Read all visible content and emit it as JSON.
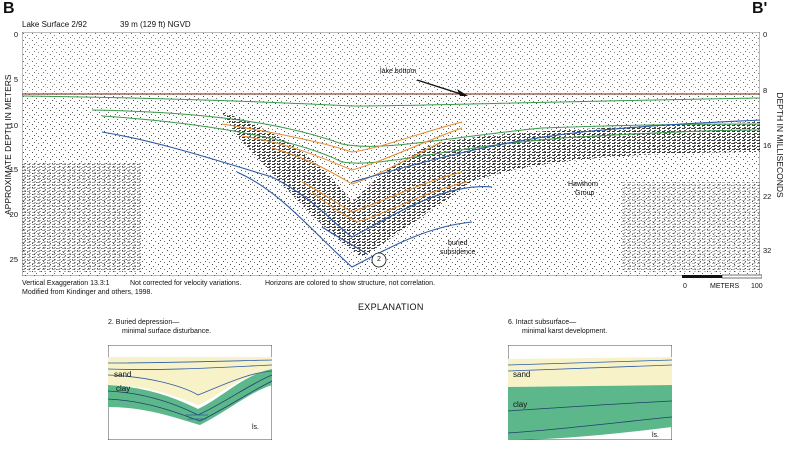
{
  "panel": {
    "left_letter": "B",
    "right_letter": "B'",
    "lake_surface": "Lake Surface 2/92",
    "ngvd": "39 m (129 ft) NGVD"
  },
  "axes": {
    "left_title": "APPROXIMATE DEPTH IN METERS",
    "right_title": "DEPTH IN MILLISECONDS",
    "left_ticks": [
      "0",
      "5",
      "10",
      "15",
      "20",
      "25"
    ],
    "right_ticks": [
      "0",
      "8",
      "16",
      "22",
      "32"
    ]
  },
  "annotations": {
    "lake_bottom": "lake bottom",
    "hawthorn_1": "Hawthorn",
    "hawthorn_2": "Group",
    "buried_1": "buried",
    "buried_2": "subsidence",
    "circle_num": "2"
  },
  "notes": {
    "exaggeration": "Vertical Exaggeration 13.3:1",
    "velocity": "Not corrected for velocity variations.",
    "horizons": "Horizons are colored to show structure, not correlation.",
    "modified": "Modified from Kindinger and others, 1998."
  },
  "scale": {
    "zero": "0",
    "unit": "METERS",
    "max": "100"
  },
  "explanation": {
    "title": "EXPLANATION",
    "inset1_title_1": "2. Buried depression—",
    "inset1_title_2": "minimal surface disturbance.",
    "inset2_title_1": "6. Intact subsurface—",
    "inset2_title_2": "minimal karst development.",
    "sand": "sand",
    "clay": "clay",
    "ls": "ls."
  },
  "colors": {
    "green_horizon": "#3a9a4a",
    "orange_horizon": "#e8892a",
    "blue_horizon": "#2c5aa8",
    "lake_bottom_line": "#8a4a3a",
    "sand_fill": "#f7f2c8",
    "clay_fill": "#5cb88a"
  }
}
